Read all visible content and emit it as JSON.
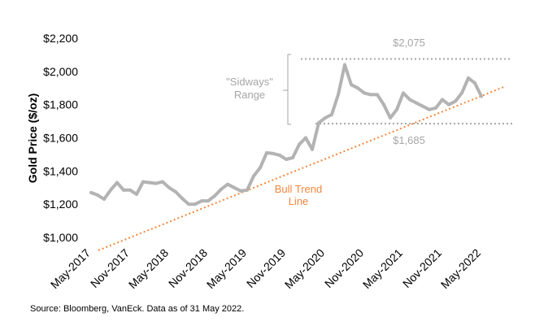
{
  "chart_data": {
    "type": "line",
    "title": "",
    "ylabel": "Gold Price ($/oz)",
    "xlabel": "",
    "ylim": [
      1000,
      2200
    ],
    "yticks": [
      "$1,000",
      "$1,200",
      "$1,400",
      "$1,600",
      "$1,800",
      "$2,000",
      "$2,200"
    ],
    "ytick_values": [
      1000,
      1200,
      1400,
      1600,
      1800,
      2000,
      2200
    ],
    "xticks": [
      "May-2017",
      "Nov-2017",
      "May-2018",
      "Nov-2018",
      "May-2019",
      "Nov-2019",
      "May-2020",
      "Nov-2020",
      "May-2021",
      "Nov-2021",
      "May-2022"
    ],
    "xtick_dates": [
      "2017-05",
      "2017-11",
      "2018-05",
      "2018-11",
      "2019-05",
      "2019-11",
      "2020-05",
      "2020-11",
      "2021-05",
      "2021-11",
      "2022-05"
    ],
    "grid": false,
    "series": [
      {
        "color": "#b3b3b3",
        "x": [
          "2017-05",
          "2017-06",
          "2017-07",
          "2017-08",
          "2017-09",
          "2017-10",
          "2017-11",
          "2017-12",
          "2018-01",
          "2018-02",
          "2018-03",
          "2018-04",
          "2018-05",
          "2018-06",
          "2018-07",
          "2018-08",
          "2018-09",
          "2018-10",
          "2018-11",
          "2018-12",
          "2019-01",
          "2019-02",
          "2019-03",
          "2019-04",
          "2019-05",
          "2019-06",
          "2019-07",
          "2019-08",
          "2019-09",
          "2019-10",
          "2019-11",
          "2019-12",
          "2020-01",
          "2020-02",
          "2020-03",
          "2020-04",
          "2020-05",
          "2020-06",
          "2020-07",
          "2020-08",
          "2020-09",
          "2020-10",
          "2020-11",
          "2020-12",
          "2021-01",
          "2021-02",
          "2021-03",
          "2021-04",
          "2021-05",
          "2021-06",
          "2021-07",
          "2021-08",
          "2021-09",
          "2021-10",
          "2021-11",
          "2021-12",
          "2022-01",
          "2022-02",
          "2022-03",
          "2022-04",
          "2022-05"
        ],
        "values": [
          1270,
          1255,
          1230,
          1285,
          1330,
          1285,
          1285,
          1260,
          1335,
          1330,
          1325,
          1335,
          1300,
          1275,
          1235,
          1200,
          1200,
          1220,
          1220,
          1250,
          1290,
          1320,
          1300,
          1280,
          1285,
          1370,
          1420,
          1510,
          1505,
          1495,
          1470,
          1480,
          1560,
          1600,
          1530,
          1690,
          1720,
          1740,
          1860,
          2040,
          1920,
          1900,
          1870,
          1860,
          1860,
          1800,
          1720,
          1770,
          1870,
          1830,
          1810,
          1790,
          1770,
          1780,
          1830,
          1800,
          1820,
          1870,
          1960,
          1930,
          1850
        ]
      }
    ],
    "annotations": {
      "range_top": {
        "label": "$2,075",
        "value": 2075,
        "color": "#a6a6a6"
      },
      "range_bottom": {
        "label": "$1,685",
        "value": 1685,
        "color": "#a6a6a6"
      },
      "range_label": [
        "\"Sidways\"",
        "Range"
      ],
      "trend_line": {
        "label": [
          "Bull Trend",
          "Line"
        ],
        "color": "#f4863b",
        "start": {
          "x": "2017-06",
          "y": 922
        },
        "end": {
          "x": "2022-09",
          "y": 1911
        }
      }
    }
  },
  "source": "Source: Bloomberg, VanEck. Data as of 31 May 2022."
}
